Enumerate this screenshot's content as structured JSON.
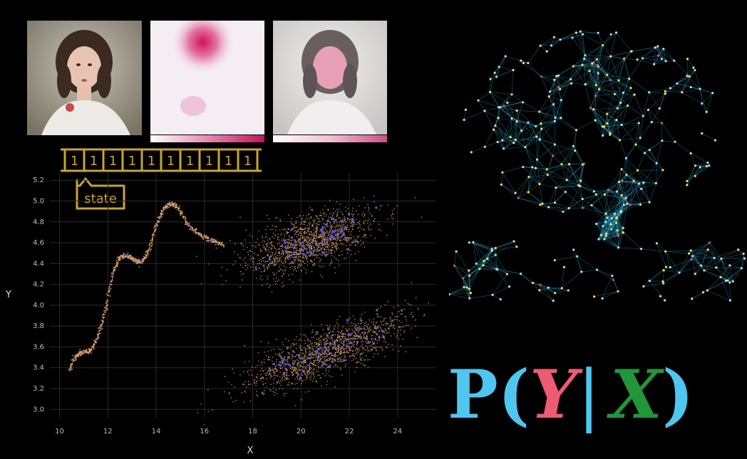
{
  "state_tape": {
    "cells": [
      "1",
      "1",
      "1",
      "1",
      "1",
      "1",
      "1",
      "1",
      "1",
      "1"
    ],
    "pointer_label": "state"
  },
  "chart_data": {
    "type": "scatter",
    "title": "",
    "xlabel": "X",
    "ylabel": "Y",
    "xlim": [
      9.6,
      25.6
    ],
    "ylim": [
      2.92,
      5.27
    ],
    "xticks": [
      10,
      12,
      14,
      16,
      18,
      20,
      22,
      24
    ],
    "yticks": [
      3.0,
      3.2,
      3.4,
      3.6,
      3.8,
      4.0,
      4.2,
      4.4,
      4.6,
      4.8,
      5.0,
      5.2
    ],
    "grid": true,
    "curve": {
      "x": [
        10.4,
        10.7,
        11.0,
        11.3,
        11.6,
        11.9,
        12.2,
        12.5,
        12.8,
        13.1,
        13.4,
        13.7,
        14.0,
        14.3,
        14.6,
        14.9,
        15.3,
        15.8,
        16.3,
        16.8
      ],
      "y": [
        3.38,
        3.52,
        3.55,
        3.56,
        3.7,
        3.95,
        4.3,
        4.46,
        4.48,
        4.43,
        4.41,
        4.52,
        4.76,
        4.93,
        4.98,
        4.94,
        4.78,
        4.68,
        4.62,
        4.58
      ]
    },
    "clusters": [
      {
        "cx": 20.3,
        "cy": 4.6,
        "sx": 1.3,
        "sy": 0.1,
        "tilt": 0.07
      },
      {
        "cx": 21.0,
        "cy": 3.55,
        "sx": 1.6,
        "sy": 0.09,
        "tilt": 0.09
      }
    ],
    "point_color": "#d9a066",
    "highlight_color": "#5b59d6"
  },
  "formula": {
    "p": "P(",
    "y": "Y",
    "bar": "|",
    "x": "X",
    "close": ")",
    "colors": {
      "p": "#4ec6ef",
      "y": "#ef5b72",
      "bar": "#4ec6ef",
      "x": "#22963a"
    }
  }
}
